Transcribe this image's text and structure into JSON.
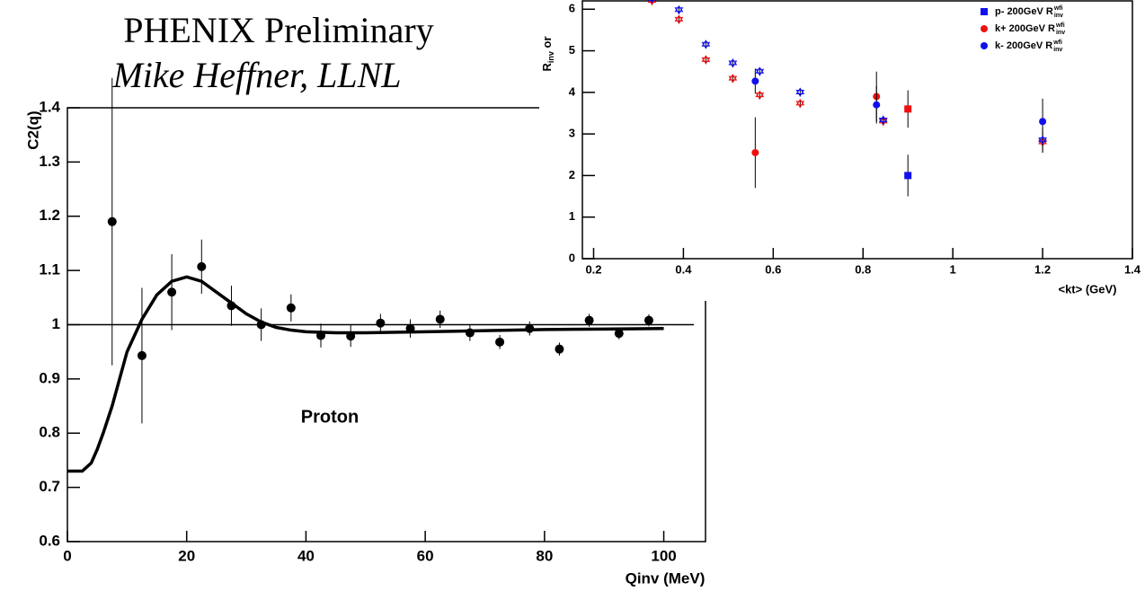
{
  "header": {
    "title": "PHENIX Preliminary",
    "author": "Mike Heffner, LLNL"
  },
  "chart_data": [
    {
      "type": "scatter",
      "y_label": "C2(q)",
      "x_label": "Qinv (MeV)",
      "annotation": "Proton",
      "xlim": [
        0,
        107
      ],
      "ylim": [
        0.6,
        1.4
      ],
      "xticks": [
        0,
        20,
        40,
        60,
        80,
        100
      ],
      "yticks": [
        0.6,
        0.7,
        0.8,
        0.9,
        1,
        1.1,
        1.2,
        1.3,
        1.4
      ],
      "hline": 1,
      "series": [
        {
          "color": "#000000",
          "marker": "circle",
          "x": [
            7.5,
            12.5,
            17.5,
            22.5,
            27.5,
            32.5,
            37.5,
            42.5,
            47.5,
            52.5,
            57.5,
            62.5,
            67.5,
            72.5,
            77.5,
            82.5,
            87.5,
            92.5,
            97.5
          ],
          "values": [
            1.19,
            0.943,
            1.06,
            1.107,
            1.035,
            1.0,
            1.031,
            0.98,
            0.979,
            1.003,
            0.993,
            1.01,
            0.985,
            0.968,
            0.993,
            0.955,
            1.008,
            0.984,
            1.008
          ],
          "errors": [
            0.265,
            0.125,
            0.07,
            0.05,
            0.037,
            0.03,
            0.025,
            0.022,
            0.02,
            0.017,
            0.017,
            0.016,
            0.015,
            0.013,
            0.013,
            0.012,
            0.012,
            0.011,
            0.011
          ]
        },
        {
          "color": "#000000",
          "marker": "line",
          "x": [
            0,
            2.5,
            4,
            5,
            6,
            7.5,
            9,
            10,
            12.5,
            15,
            17.5,
            20,
            22.5,
            25,
            27.5,
            30,
            32.5,
            35,
            37.5,
            40,
            45,
            50,
            60,
            70,
            80,
            90,
            100
          ],
          "values": [
            0.73,
            0.73,
            0.745,
            0.77,
            0.8,
            0.85,
            0.91,
            0.95,
            1.01,
            1.055,
            1.08,
            1.088,
            1.08,
            1.06,
            1.04,
            1.02,
            1.005,
            0.995,
            0.99,
            0.987,
            0.985,
            0.985,
            0.987,
            0.989,
            0.991,
            0.992,
            0.993
          ]
        }
      ]
    },
    {
      "type": "scatter",
      "y_label": {
        "main": "R",
        "sub": "inv",
        "rest": " or"
      },
      "x_label": "<kt> (GeV)",
      "xlim": [
        0.175,
        1.4
      ],
      "ylim": [
        0,
        6.2
      ],
      "xticks": [
        0.2,
        0.4,
        0.6,
        0.8,
        1,
        1.2,
        1.4
      ],
      "yticks": [
        0,
        1,
        2,
        3,
        4,
        5,
        6
      ],
      "series": [
        {
          "name": "p- 200GeV R",
          "name_sup": "wfi",
          "name_sub": "inv",
          "color": "#1010ee",
          "marker": "square",
          "x": [
            0.9
          ],
          "values": [
            2.0
          ],
          "errors": [
            0.5
          ]
        },
        {
          "name": "k+ 200GeV R",
          "name_sup": "wfi",
          "name_sub": "inv",
          "color": "#ee1010",
          "marker": "circle",
          "x": [
            0.56,
            0.83
          ],
          "values": [
            2.55,
            3.9
          ],
          "errors": [
            0.85,
            0.6
          ]
        },
        {
          "name": "k- 200GeV R",
          "name_sup": "wfi",
          "name_sub": "inv",
          "color": "#1010ee",
          "marker": "circle",
          "x": [
            0.56,
            0.83,
            1.2
          ],
          "values": [
            4.27,
            3.7,
            3.3
          ],
          "errors": [
            0.3,
            0.45,
            0.55
          ]
        },
        {
          "color": "#ee1010",
          "marker": "square",
          "x": [
            0.9
          ],
          "values": [
            3.6
          ],
          "errors": [
            0.45
          ]
        },
        {
          "color": "#ee1010",
          "marker": "triangle",
          "x": [
            0.33,
            0.39,
            0.45,
            0.51,
            0.57,
            0.66,
            0.845,
            1.2
          ],
          "values": [
            6.2,
            5.75,
            4.78,
            4.33,
            3.93,
            3.73,
            3.3,
            2.8
          ],
          "errors": [
            0.1,
            0.1,
            0.1,
            0.1,
            0.1,
            0.1,
            0.1,
            0.25
          ]
        },
        {
          "color": "#1010ee",
          "marker": "triangle",
          "x": [
            0.33,
            0.39,
            0.45,
            0.51,
            0.57,
            0.66,
            0.845,
            1.2
          ],
          "values": [
            6.25,
            5.98,
            5.15,
            4.7,
            4.5,
            4.0,
            3.33,
            2.85
          ],
          "errors": [
            0.1,
            0.1,
            0.1,
            0.1,
            0.1,
            0.1,
            0.1,
            0.3
          ]
        }
      ]
    }
  ]
}
